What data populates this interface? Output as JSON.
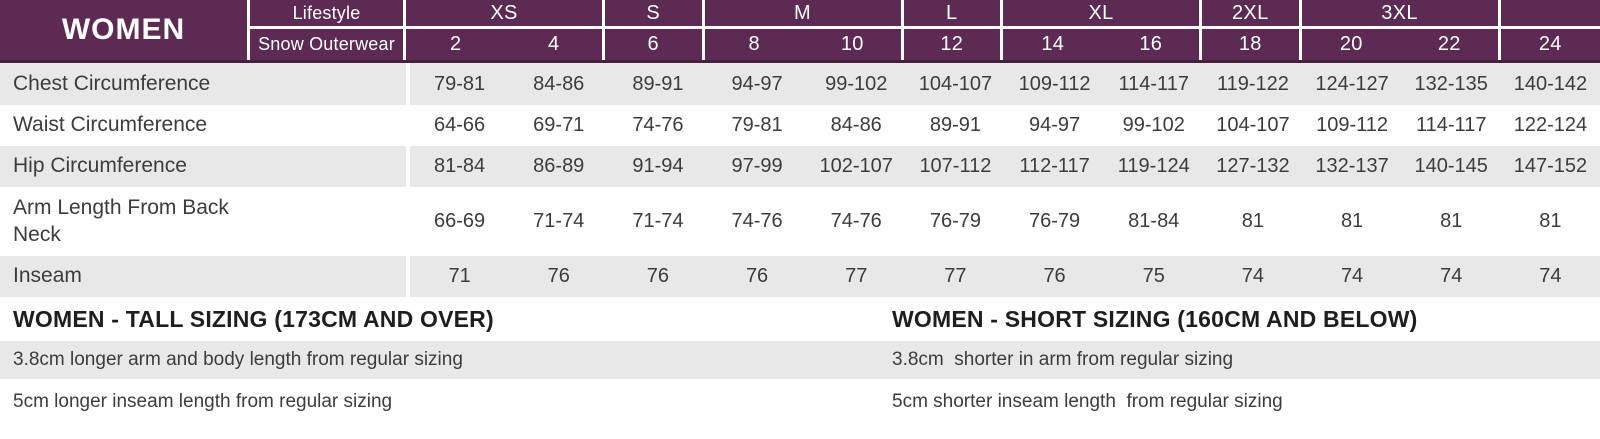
{
  "header": {
    "title": "WOMEN",
    "row1_label": "Lifestyle",
    "row2_label": "Snow Outerwear",
    "groups": [
      {
        "label": "XS",
        "span": 2
      },
      {
        "label": "S",
        "span": 1
      },
      {
        "label": "M",
        "span": 2
      },
      {
        "label": "L",
        "span": 1
      },
      {
        "label": "XL",
        "span": 2
      },
      {
        "label": "2XL",
        "span": 1
      },
      {
        "label": "3XL",
        "span": 2
      },
      {
        "label": "",
        "span": 1
      }
    ],
    "sizes": [
      "2",
      "4",
      "6",
      "8",
      "10",
      "12",
      "14",
      "16",
      "18",
      "20",
      "22",
      "24"
    ]
  },
  "measurements": [
    {
      "label": "Chest Circumference",
      "values": [
        "79-81",
        "84-86",
        "89-91",
        "94-97",
        "99-102",
        "104-107",
        "109-112",
        "114-117",
        "119-122",
        "124-127",
        "132-135",
        "140-142"
      ]
    },
    {
      "label": "Waist Circumference",
      "values": [
        "64-66",
        "69-71",
        "74-76",
        "79-81",
        "84-86",
        "89-91",
        "94-97",
        "99-102",
        "104-107",
        "109-112",
        "114-117",
        "122-124"
      ]
    },
    {
      "label": "Hip Circumference",
      "values": [
        "81-84",
        "86-89",
        "91-94",
        "97-99",
        "102-107",
        "107-112",
        "112-117",
        "119-124",
        "127-132",
        "132-137",
        "140-145",
        "147-152"
      ]
    },
    {
      "label": "Arm Length From Back Neck",
      "values": [
        "66-69",
        "71-74",
        "71-74",
        "74-76",
        "74-76",
        "76-79",
        "76-79",
        "81-84",
        "81",
        "81",
        "81",
        "81"
      ]
    },
    {
      "label": "Inseam",
      "values": [
        "71",
        "76",
        "76",
        "76",
        "77",
        "77",
        "76",
        "75",
        "74",
        "74",
        "74",
        "74"
      ]
    }
  ],
  "footnotes": {
    "tall": {
      "heading": "WOMEN - TALL SIZING (173CM AND OVER)",
      "note_arm": "3.8cm longer arm and body length from regular sizing",
      "note_inseam": "5cm longer inseam length from regular sizing"
    },
    "short": {
      "heading": "WOMEN - SHORT SIZING (160CM AND BELOW)",
      "note_arm": "3.8cm  shorter in arm from regular sizing",
      "note_inseam": "5cm shorter inseam length  from regular sizing"
    }
  },
  "colors": {
    "header_purple": "#5D2A53",
    "header_dark_edge": "#46203E",
    "row_gray": "#E8E8E8",
    "body_text": "#3C3C3C",
    "heading_text": "#1F1D1E",
    "header_text": "#FFFFFF"
  }
}
